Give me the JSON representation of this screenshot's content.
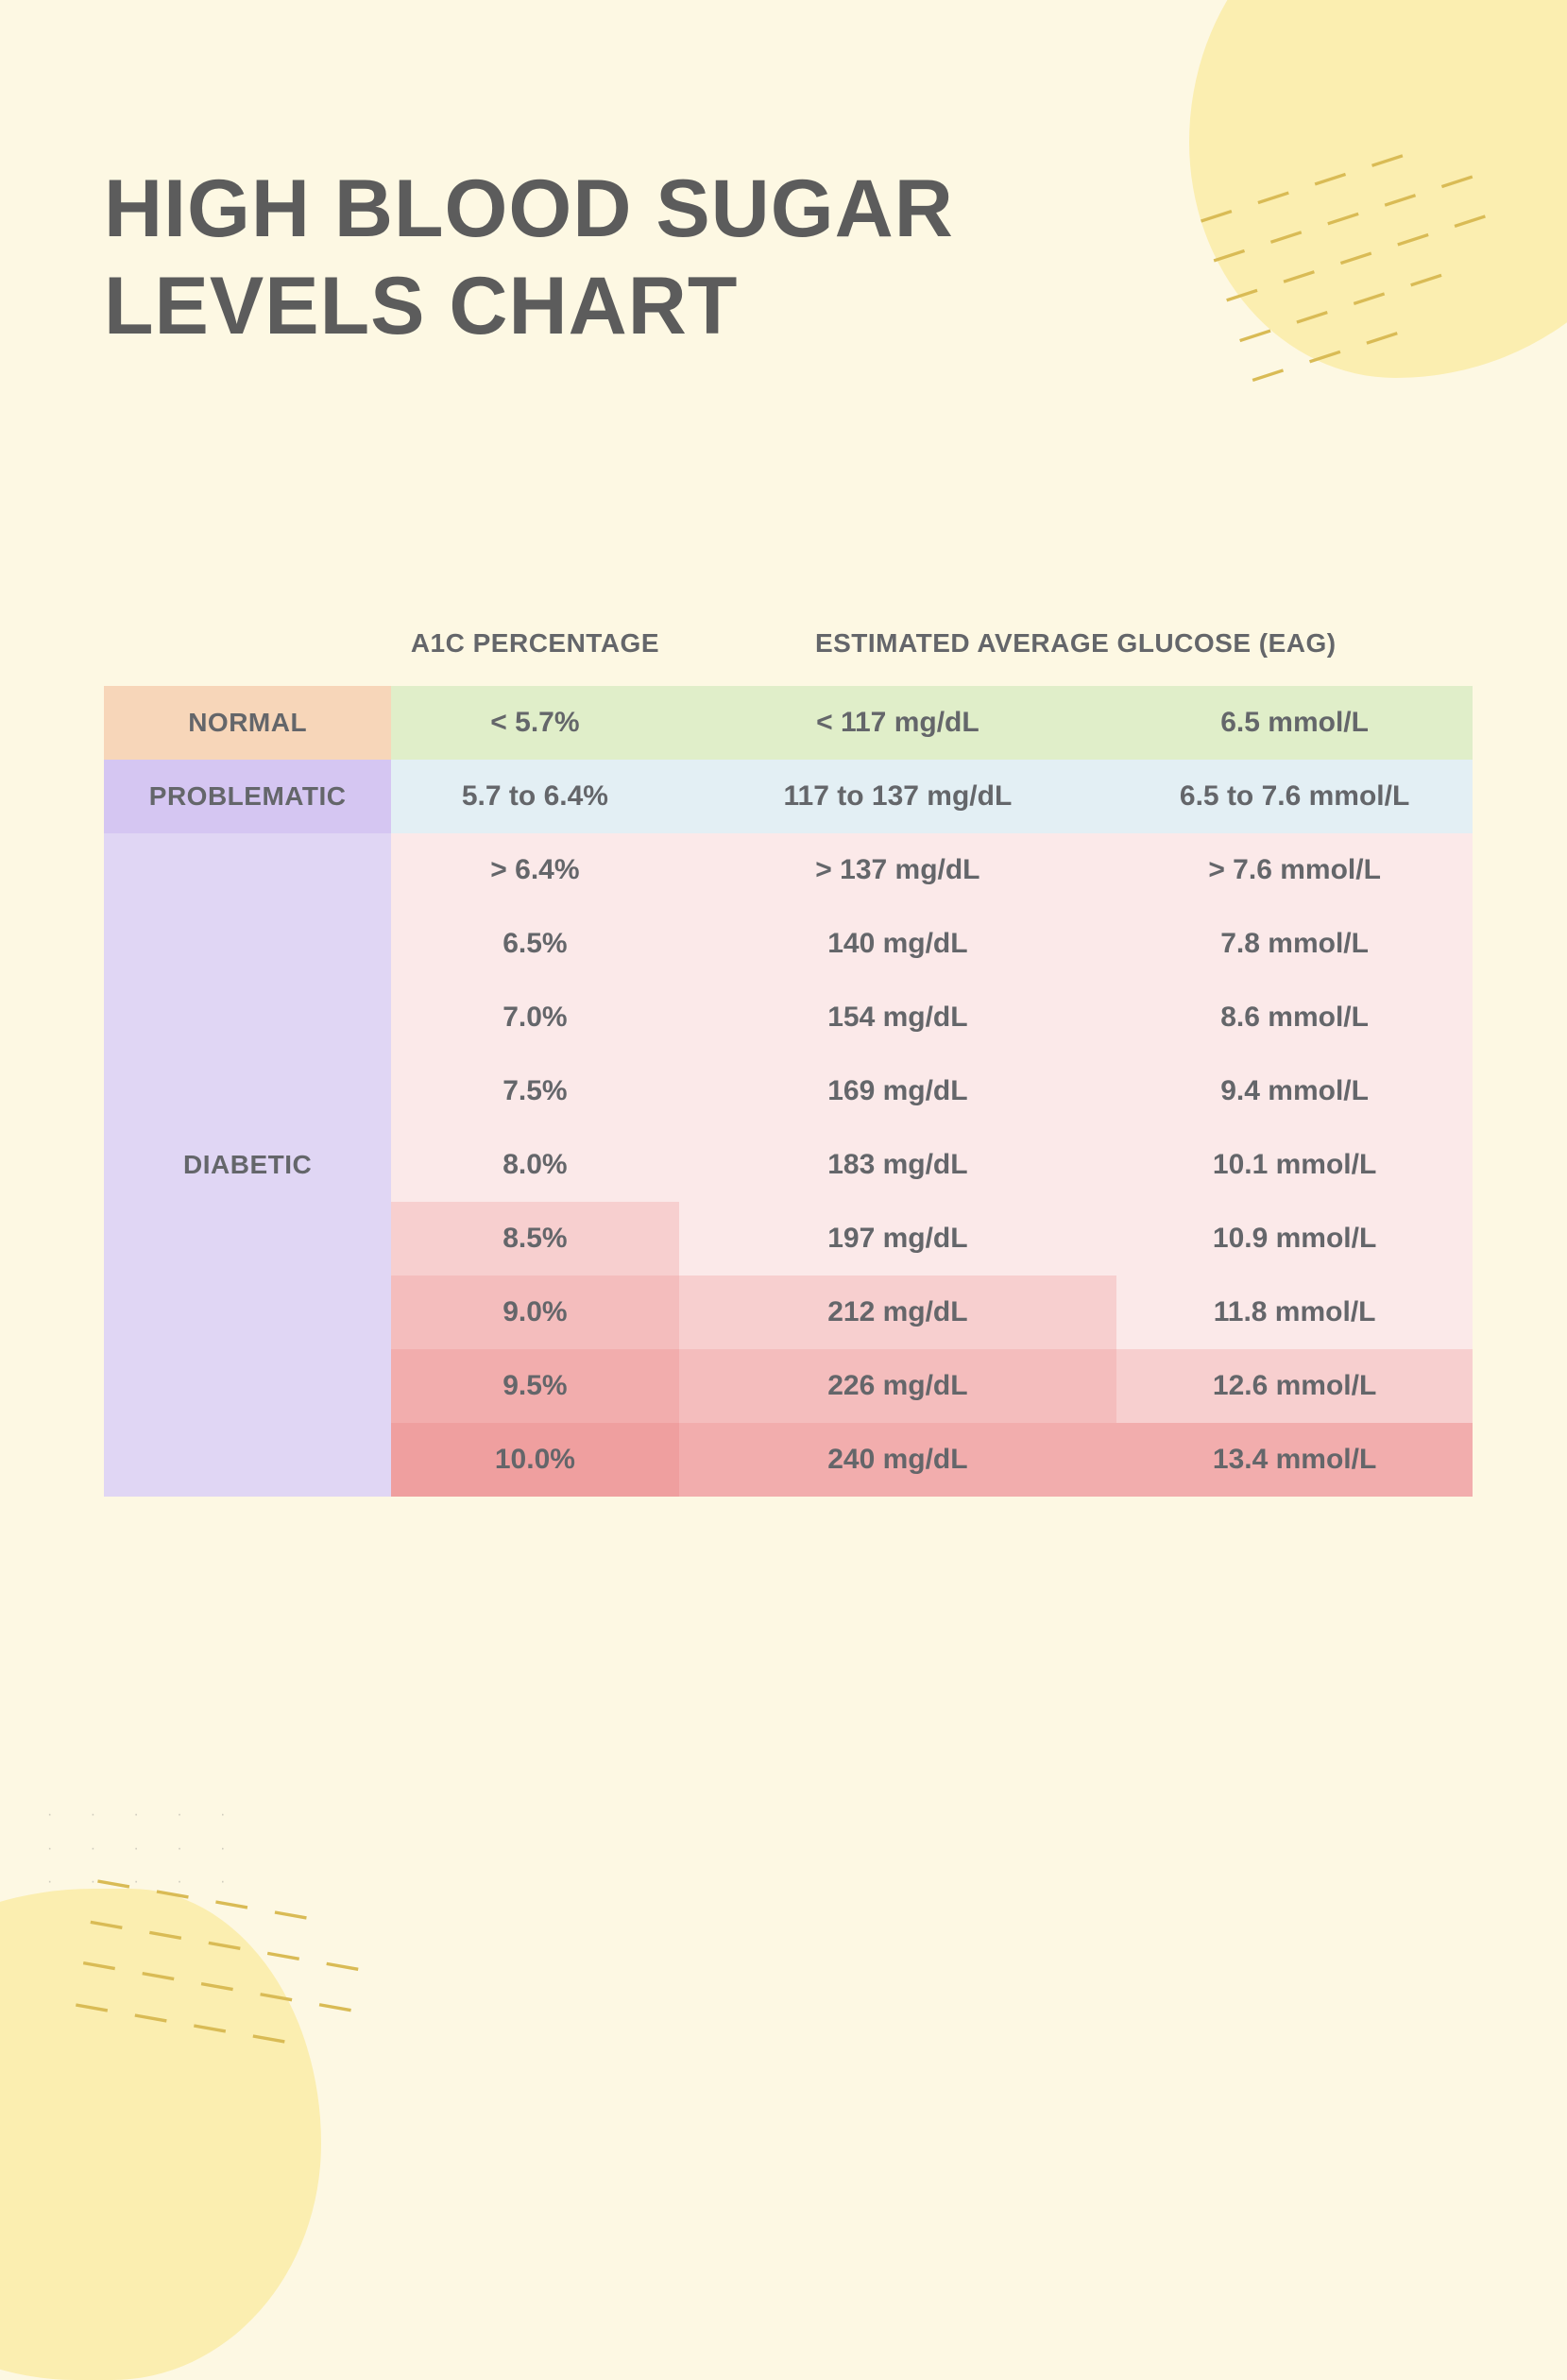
{
  "title": "HIGH BLOOD SUGAR LEVELS CHART",
  "headers": {
    "a1c": "A1C PERCENTAGE",
    "eag": "ESTIMATED AVERAGE GLUCOSE (EAG)"
  },
  "colors": {
    "page_bg": "#fdf8e3",
    "blob": "#fbeeb0",
    "dash": "#d9bb55",
    "text": "#5c5c5c",
    "cell_text": "#64666a",
    "label_normal_bg": "#f7d6b9",
    "label_problematic_bg": "#d5c6f2",
    "label_diabetic_bg": "#e0d6f4",
    "row_normal_bg": "#e0eec9",
    "row_problematic_bg": "#e3eff4",
    "diabetic_shades": [
      "#fbe9e9",
      "#fbe9e9",
      "#fbe9e9",
      "#fbe9e9",
      "#fbe9e9",
      "#f7cfcf",
      "#f4bdbd",
      "#f2adad",
      "#ef9f9f"
    ],
    "diabetic_mgdl_shades": [
      "#fbe9e9",
      "#fbe9e9",
      "#fbe9e9",
      "#fbe9e9",
      "#fbe9e9",
      "#fbe9e9",
      "#f7cfcf",
      "#f4bdbd",
      "#f2adad"
    ],
    "diabetic_mmol_shades": [
      "#fbe9e9",
      "#fbe9e9",
      "#fbe9e9",
      "#fbe9e9",
      "#fbe9e9",
      "#fbe9e9",
      "#fbe9e9",
      "#f7cfcf",
      "#f2adad"
    ]
  },
  "categories": [
    {
      "label": "NORMAL",
      "label_bg_key": "label_normal_bg",
      "row_bg_key": "row_normal_bg",
      "rows": [
        {
          "a1c": "< 5.7%",
          "mgdl": "< 117 mg/dL",
          "mmol": "6.5 mmol/L"
        }
      ]
    },
    {
      "label": "PROBLEMATIC",
      "label_bg_key": "label_problematic_bg",
      "row_bg_key": "row_problematic_bg",
      "rows": [
        {
          "a1c": "5.7 to 6.4%",
          "mgdl": "117 to 137 mg/dL",
          "mmol": "6.5 to 7.6 mmol/L"
        }
      ]
    },
    {
      "label": "DIABETIC",
      "label_bg_key": "label_diabetic_bg",
      "shaded": true,
      "rows": [
        {
          "a1c": "> 6.4%",
          "mgdl": "> 137 mg/dL",
          "mmol": "> 7.6 mmol/L"
        },
        {
          "a1c": "6.5%",
          "mgdl": "140 mg/dL",
          "mmol": "7.8 mmol/L"
        },
        {
          "a1c": "7.0%",
          "mgdl": "154 mg/dL",
          "mmol": "8.6 mmol/L"
        },
        {
          "a1c": "7.5%",
          "mgdl": "169 mg/dL",
          "mmol": "9.4 mmol/L"
        },
        {
          "a1c": "8.0%",
          "mgdl": "183 mg/dL",
          "mmol": "10.1 mmol/L"
        },
        {
          "a1c": "8.5%",
          "mgdl": "197 mg/dL",
          "mmol": "10.9 mmol/L"
        },
        {
          "a1c": "9.0%",
          "mgdl": "212 mg/dL",
          "mmol": "11.8 mmol/L"
        },
        {
          "a1c": "9.5%",
          "mgdl": "226 mg/dL",
          "mmol": "12.6 mmol/L"
        },
        {
          "a1c": "10.0%",
          "mgdl": "240 mg/dL",
          "mmol": "13.4 mmol/L"
        }
      ]
    }
  ]
}
